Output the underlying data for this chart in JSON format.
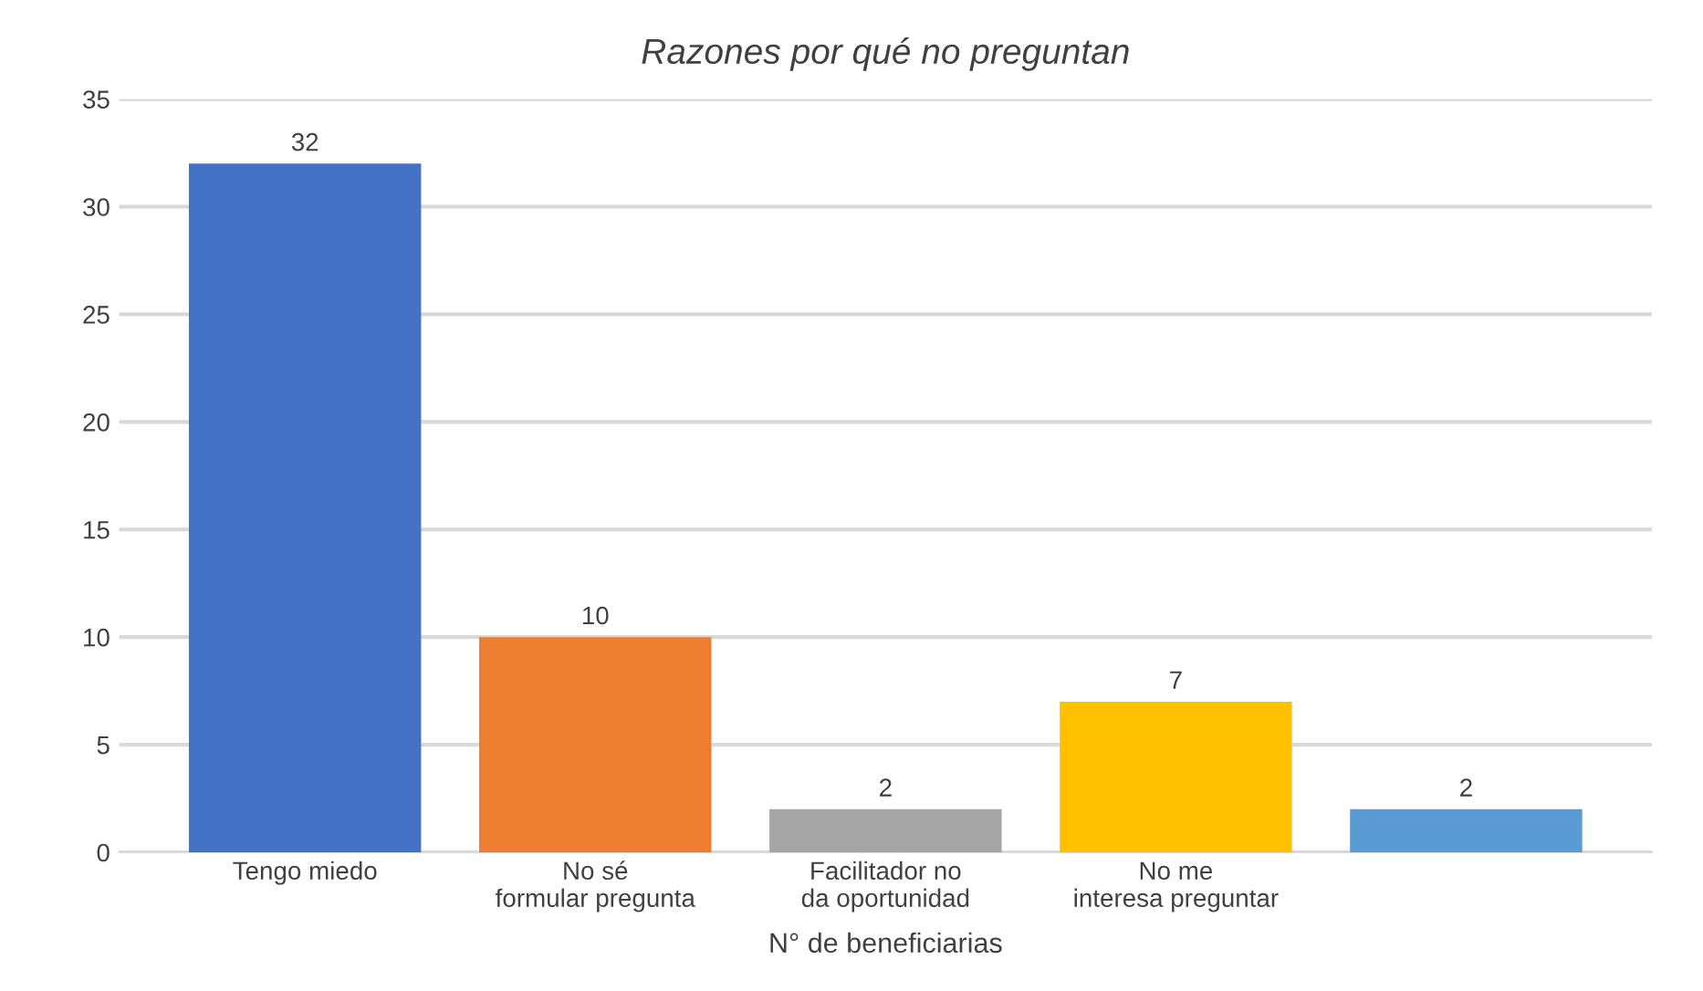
{
  "chart_data": {
    "type": "bar",
    "title": "Razones por qué no preguntan",
    "xlabel": "N° de beneficiarias",
    "categories": [
      "Tengo miedo",
      "No sé formular pregunta",
      "Facilitador no da oportunidad",
      "No me interesa preguntar",
      null
    ],
    "values": [
      32,
      10,
      2,
      7,
      2
    ],
    "colors": [
      "#4472c4",
      "#ed7d31",
      "#a5a5a5",
      "#ffc000",
      "#5b9bd5"
    ],
    "ylim": [
      0,
      35
    ],
    "yticks": [
      0,
      5,
      10,
      15,
      20,
      25,
      30,
      35
    ],
    "grid": "y",
    "data_labels": true
  }
}
